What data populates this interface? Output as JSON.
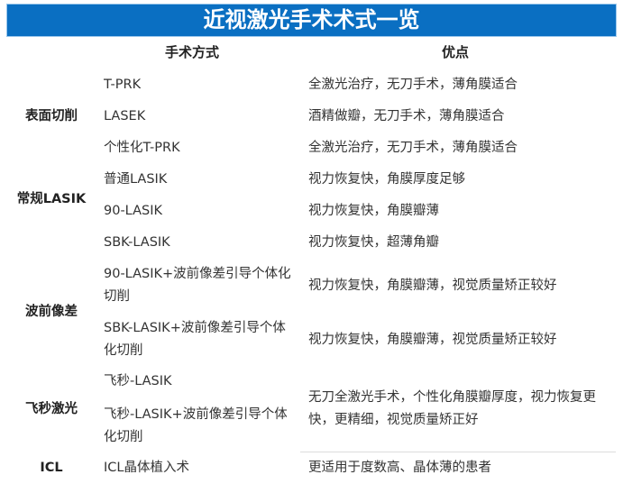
{
  "title": "近视激光手术术式一览",
  "headers": {
    "method": "手术方式",
    "advantage": "优点"
  },
  "categories": [
    "表面切削",
    "常规LASIK",
    "波前像差",
    "飞秒激光",
    "ICL"
  ],
  "rows": [
    {
      "method": "T-PRK",
      "advantage": "全激光治疗，无刀手术，薄角膜适合"
    },
    {
      "method": "LASEK",
      "advantage": "酒精做瓣，无刀手术，薄角膜适合"
    },
    {
      "method": "个性化T-PRK",
      "advantage": "全激光治疗，无刀手术，薄角膜适合"
    },
    {
      "method": "普通LASIK",
      "advantage": "视力恢复快，角膜厚度足够"
    },
    {
      "method": "90-LASIK",
      "advantage": "视力恢复快，角膜瓣薄"
    },
    {
      "method": "SBK-LASIK",
      "advantage": "视力恢复快，超薄角瓣"
    },
    {
      "method": "90-LASIK+波前像差引导个体化切削",
      "advantage": "视力恢复快，角膜瓣薄，视觉质量矫正较好"
    },
    {
      "method": "SBK-LASIK+波前像差引导个体化切削",
      "advantage": "视力恢复快，角膜瓣薄，视觉质量矫正较好"
    },
    {
      "method": "飞秒-LASIK",
      "advantage": ""
    },
    {
      "method": "飞秒-LASIK+波前像差引导个体化切削",
      "advantage": ""
    },
    {
      "method": "ICL晶体植入术",
      "advantage": "更适用于度数高、晶体薄的患者"
    }
  ],
  "femto_advantage": "无刀全激光手术，个性化角膜瓣厚度，视力恢复更快，更精细，视觉质量矫正好",
  "colors": {
    "title_bg": "#0a6fc2",
    "title_text": "#ffffff"
  }
}
